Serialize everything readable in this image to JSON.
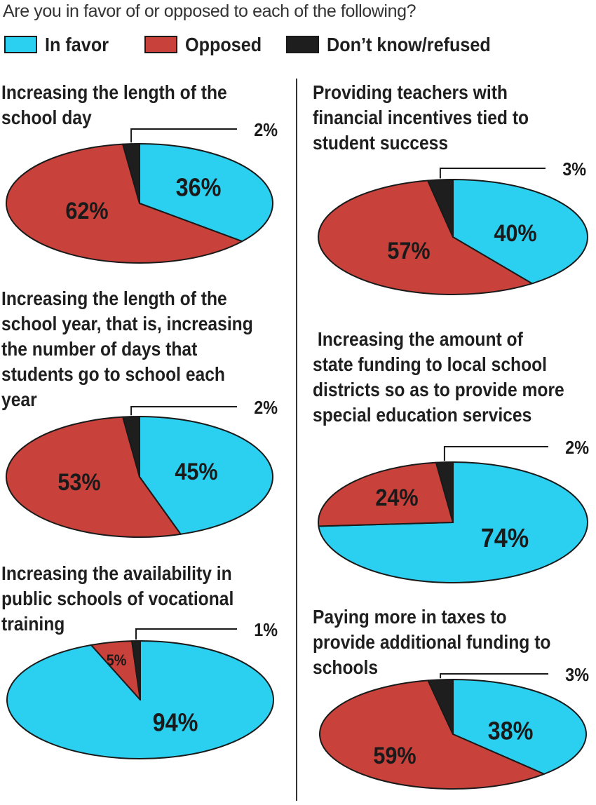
{
  "question": "Are you in favor of or opposed to each of the following?",
  "legend": [
    {
      "label": "In favor",
      "color": "#2bd0f0"
    },
    {
      "label": "Opposed",
      "color": "#c8413b"
    },
    {
      "label": "Don’t know/refused",
      "color": "#1e1e1e"
    }
  ],
  "chart_data": [
    {
      "type": "pie",
      "title": "Increasing the length of the\nschool day",
      "slices": [
        {
          "label": "In favor",
          "value": 36,
          "text": "36%"
        },
        {
          "label": "Opposed",
          "value": 62,
          "text": "62%"
        },
        {
          "label": "Don’t know/refused",
          "value": 2,
          "text": "2%"
        }
      ]
    },
    {
      "type": "pie",
      "title": "Providing teachers with\nfinancial incentives tied to\nstudent success",
      "slices": [
        {
          "label": "In favor",
          "value": 40,
          "text": "40%"
        },
        {
          "label": "Opposed",
          "value": 57,
          "text": "57%"
        },
        {
          "label": "Don’t know/refused",
          "value": 3,
          "text": "3%"
        }
      ]
    },
    {
      "type": "pie",
      "title": "Increasing the length of the\nschool year, that is, increasing\nthe number of days that\nstudents go to school each\nyear",
      "slices": [
        {
          "label": "In favor",
          "value": 45,
          "text": "45%"
        },
        {
          "label": "Opposed",
          "value": 53,
          "text": "53%"
        },
        {
          "label": "Don’t know/refused",
          "value": 2,
          "text": "2%"
        }
      ]
    },
    {
      "type": "pie",
      "title": " Increasing the amount of\nstate funding to local school\ndistricts so as to provide more\nspecial education services",
      "slices": [
        {
          "label": "In favor",
          "value": 74,
          "text": "74%"
        },
        {
          "label": "Opposed",
          "value": 24,
          "text": "24%"
        },
        {
          "label": "Don’t know/refused",
          "value": 2,
          "text": "2%"
        }
      ]
    },
    {
      "type": "pie",
      "title": "Increasing the availability in\npublic schools of vocational\ntraining",
      "slices": [
        {
          "label": "In favor",
          "value": 94,
          "text": "94%"
        },
        {
          "label": "Opposed",
          "value": 5,
          "text": "5%"
        },
        {
          "label": "Don’t know/refused",
          "value": 1,
          "text": "1%"
        }
      ]
    },
    {
      "type": "pie",
      "title": "Paying more in taxes to\nprovide additional funding to\nschools",
      "slices": [
        {
          "label": "In favor",
          "value": 38,
          "text": "38%"
        },
        {
          "label": "Opposed",
          "value": 59,
          "text": "59%"
        },
        {
          "label": "Don’t know/refused",
          "value": 3,
          "text": "3%"
        }
      ]
    }
  ]
}
